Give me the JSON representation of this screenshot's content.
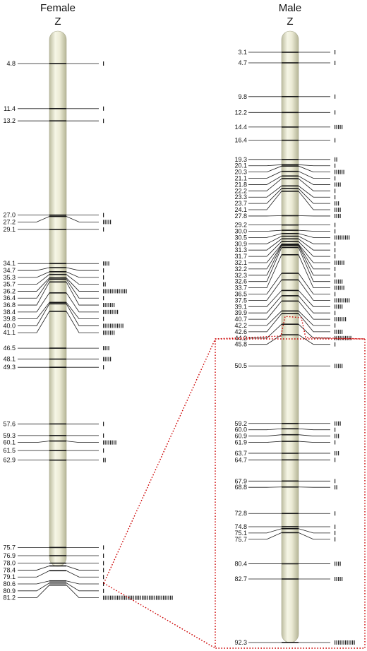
{
  "female": {
    "sex": "Female",
    "chromosome": "Z",
    "markers": [
      {
        "pos": 4.8,
        "label": "4.8",
        "ticks": 1
      },
      {
        "pos": 11.4,
        "label": "11.4",
        "ticks": 1
      },
      {
        "pos": 13.2,
        "label": "13.2",
        "ticks": 1
      },
      {
        "pos": 27.0,
        "label": "27.0",
        "ticks": 1
      },
      {
        "pos": 27.2,
        "label": "27.2",
        "ticks": 5
      },
      {
        "pos": 29.1,
        "label": "29.1",
        "ticks": 1
      },
      {
        "pos": 34.1,
        "label": "34.1",
        "ticks": 4
      },
      {
        "pos": 34.7,
        "label": "34.7",
        "ticks": 1
      },
      {
        "pos": 35.3,
        "label": "35.3",
        "ticks": 1
      },
      {
        "pos": 35.7,
        "label": "35.7",
        "ticks": 2
      },
      {
        "pos": 36.2,
        "label": "36.2",
        "ticks": 14
      },
      {
        "pos": 36.4,
        "label": "36.4",
        "ticks": 1
      },
      {
        "pos": 36.8,
        "label": "36.8",
        "ticks": 7
      },
      {
        "pos": 38.4,
        "label": "38.4",
        "ticks": 9
      },
      {
        "pos": 39.8,
        "label": "39.8",
        "ticks": 1
      },
      {
        "pos": 40.0,
        "label": "40.0",
        "ticks": 12
      },
      {
        "pos": 41.1,
        "label": "41.1",
        "ticks": 7
      },
      {
        "pos": 46.5,
        "label": "46.5",
        "ticks": 4
      },
      {
        "pos": 48.1,
        "label": "48.1",
        "ticks": 5
      },
      {
        "pos": 49.3,
        "label": "49.3",
        "ticks": 1
      },
      {
        "pos": 57.6,
        "label": "57.6",
        "ticks": 1
      },
      {
        "pos": 59.3,
        "label": "59.3",
        "ticks": 1
      },
      {
        "pos": 60.1,
        "label": "60.1",
        "ticks": 8
      },
      {
        "pos": 61.5,
        "label": "61.5",
        "ticks": 1
      },
      {
        "pos": 62.9,
        "label": "62.9",
        "ticks": 2
      },
      {
        "pos": 75.7,
        "label": "75.7",
        "ticks": 1
      },
      {
        "pos": 76.9,
        "label": "76.9",
        "ticks": 1
      },
      {
        "pos": 78.0,
        "label": "78.0",
        "ticks": 1
      },
      {
        "pos": 78.4,
        "label": "78.4",
        "ticks": 1
      },
      {
        "pos": 79.1,
        "label": "79.1",
        "ticks": 1
      },
      {
        "pos": 80.6,
        "label": "80.6",
        "ticks": 1
      },
      {
        "pos": 80.9,
        "label": "80.9",
        "ticks": 1
      },
      {
        "pos": 81.2,
        "label": "81.2",
        "ticks": 40
      }
    ]
  },
  "male": {
    "sex": "Male",
    "chromosome": "Z",
    "markers": [
      {
        "pos": 3.1,
        "label": "3.1",
        "ticks": 1
      },
      {
        "pos": 4.7,
        "label": "4.7",
        "ticks": 1
      },
      {
        "pos": 9.8,
        "label": "9.8",
        "ticks": 1
      },
      {
        "pos": 12.2,
        "label": "12.2",
        "ticks": 1
      },
      {
        "pos": 14.4,
        "label": "14.4",
        "ticks": 5
      },
      {
        "pos": 16.4,
        "label": "16.4",
        "ticks": 1
      },
      {
        "pos": 19.3,
        "label": "19.3",
        "ticks": 2
      },
      {
        "pos": 20.1,
        "label": "20.1",
        "ticks": 1
      },
      {
        "pos": 20.3,
        "label": "20.3",
        "ticks": 6
      },
      {
        "pos": 21.1,
        "label": "21.1",
        "ticks": 1
      },
      {
        "pos": 21.8,
        "label": "21.8",
        "ticks": 4
      },
      {
        "pos": 22.2,
        "label": "22.2",
        "ticks": 1
      },
      {
        "pos": 23.3,
        "label": "23.3",
        "ticks": 1
      },
      {
        "pos": 23.7,
        "label": "23.7",
        "ticks": 3
      },
      {
        "pos": 24.1,
        "label": "24.1",
        "ticks": 4
      },
      {
        "pos": 27.8,
        "label": "27.8",
        "ticks": 4
      },
      {
        "pos": 29.2,
        "label": "29.2",
        "ticks": 1
      },
      {
        "pos": 30.0,
        "label": "30.0",
        "ticks": 1
      },
      {
        "pos": 30.5,
        "label": "30.5",
        "ticks": 9
      },
      {
        "pos": 30.9,
        "label": "30.9",
        "ticks": 1
      },
      {
        "pos": 31.3,
        "label": "31.3",
        "ticks": 1
      },
      {
        "pos": 31.7,
        "label": "31.7",
        "ticks": 1
      },
      {
        "pos": 32.1,
        "label": "32.1",
        "ticks": 6
      },
      {
        "pos": 32.2,
        "label": "32.2",
        "ticks": 1
      },
      {
        "pos": 32.3,
        "label": "32.3",
        "ticks": 1
      },
      {
        "pos": 32.6,
        "label": "32.6",
        "ticks": 5
      },
      {
        "pos": 33.7,
        "label": "33.7",
        "ticks": 6
      },
      {
        "pos": 36.5,
        "label": "36.5",
        "ticks": 1
      },
      {
        "pos": 37.5,
        "label": "37.5",
        "ticks": 9
      },
      {
        "pos": 39.1,
        "label": "39.1",
        "ticks": 5
      },
      {
        "pos": 39.9,
        "label": "39.9",
        "ticks": 1
      },
      {
        "pos": 40.7,
        "label": "40.7",
        "ticks": 7
      },
      {
        "pos": 42.2,
        "label": "42.2",
        "ticks": 1
      },
      {
        "pos": 42.6,
        "label": "42.6",
        "ticks": 5
      },
      {
        "pos": 44.2,
        "label": "44.2",
        "ticks": 10
      },
      {
        "pos": 45.8,
        "label": "45.8",
        "ticks": 1
      },
      {
        "pos": 50.5,
        "label": "50.5",
        "ticks": 5
      },
      {
        "pos": 59.2,
        "label": "59.2",
        "ticks": 4
      },
      {
        "pos": 60.0,
        "label": "60.0",
        "ticks": 1
      },
      {
        "pos": 60.9,
        "label": "60.9",
        "ticks": 3
      },
      {
        "pos": 61.9,
        "label": "61.9",
        "ticks": 1
      },
      {
        "pos": 63.7,
        "label": "63.7",
        "ticks": 3
      },
      {
        "pos": 64.7,
        "label": "64.7",
        "ticks": 1
      },
      {
        "pos": 67.9,
        "label": "67.9",
        "ticks": 1
      },
      {
        "pos": 68.8,
        "label": "68.8",
        "ticks": 2
      },
      {
        "pos": 72.8,
        "label": "72.8",
        "ticks": 1
      },
      {
        "pos": 74.8,
        "label": "74.8",
        "ticks": 1
      },
      {
        "pos": 75.1,
        "label": "75.1",
        "ticks": 1
      },
      {
        "pos": 75.7,
        "label": "75.7",
        "ticks": 1
      },
      {
        "pos": 80.4,
        "label": "80.4",
        "ticks": 4
      },
      {
        "pos": 82.7,
        "label": "82.7",
        "ticks": 5
      },
      {
        "pos": 92.3,
        "label": "92.3",
        "ticks": 12
      }
    ]
  },
  "colors": {
    "chromosome_fill": "#ebebd5",
    "chromosome_shade": "#c9c9ad",
    "band": "#111111",
    "highlight_box": "#cc0000"
  }
}
